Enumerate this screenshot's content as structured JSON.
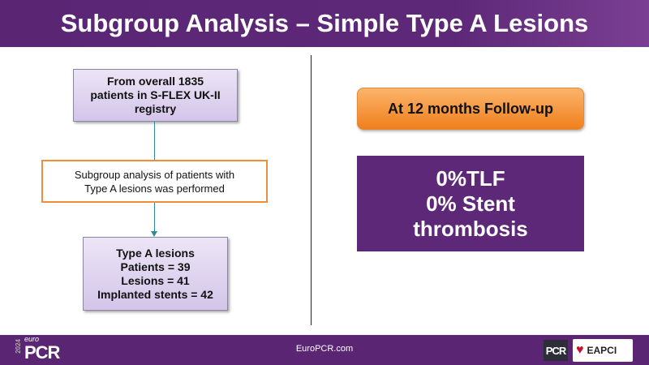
{
  "title": "Subgroup Analysis – Simple Type A Lesions",
  "flow": {
    "box1": [
      "From overall 1835",
      "patients in S-FLEX UK-II",
      "registry"
    ],
    "box2": [
      "Subgroup analysis of patients with",
      "Type A lesions was performed"
    ],
    "box3": [
      "Type A lesions",
      "Patients = 39",
      "Lesions = 41",
      "Implanted stents = 42"
    ]
  },
  "followup": "At 12 months Follow-up",
  "results": [
    "0%TLF",
    "0% Stent",
    "thrombosis"
  ],
  "footer": {
    "year": "2024",
    "logo_euro": "euro",
    "logo_pcr": "PCR",
    "site": "EuroPCR.com",
    "pcr_logo": "PCR",
    "eapci_logo": "EAPCI"
  },
  "colors": {
    "purple": "#5e2878",
    "orange": "#f07f1c",
    "lavender": "#d3c5ea",
    "connector": "#2e8b95"
  }
}
